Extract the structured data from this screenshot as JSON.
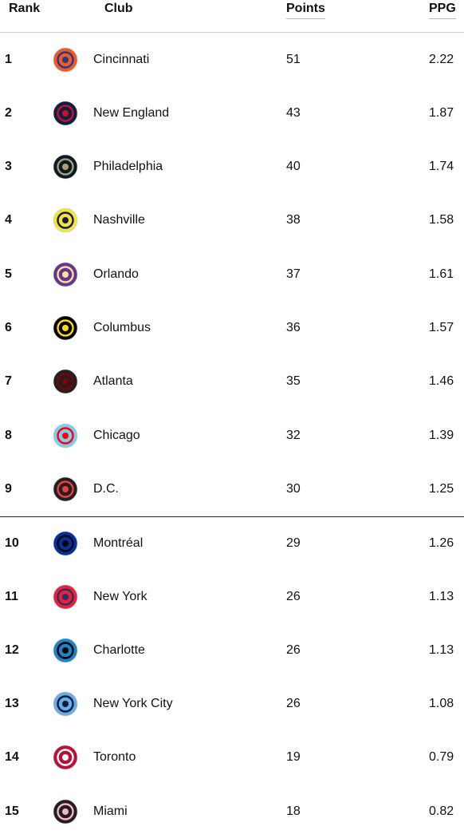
{
  "headers": {
    "rank": "Rank",
    "club": "Club",
    "points": "Points",
    "ppg": "PPG"
  },
  "rows": [
    {
      "rank": "1",
      "club": "Cincinnati",
      "points": "51",
      "ppg": "2.22",
      "logo": "cincinnati-logo-icon",
      "colors": [
        "#f05a28",
        "#263b80"
      ]
    },
    {
      "rank": "2",
      "club": "New England",
      "points": "43",
      "ppg": "1.87",
      "logo": "new-england-logo-icon",
      "colors": [
        "#0a2240",
        "#ce0e2d"
      ]
    },
    {
      "rank": "3",
      "club": "Philadelphia",
      "points": "40",
      "ppg": "1.74",
      "logo": "philadelphia-logo-icon",
      "colors": [
        "#071b2c",
        "#b19b69"
      ]
    },
    {
      "rank": "4",
      "club": "Nashville",
      "points": "38",
      "ppg": "1.58",
      "logo": "nashville-logo-icon",
      "colors": [
        "#ece83a",
        "#1f1646"
      ]
    },
    {
      "rank": "5",
      "club": "Orlando",
      "points": "37",
      "ppg": "1.61",
      "logo": "orlando-logo-icon",
      "colors": [
        "#633492",
        "#fde192"
      ]
    },
    {
      "rank": "6",
      "club": "Columbus",
      "points": "36",
      "ppg": "1.57",
      "logo": "columbus-logo-icon",
      "colors": [
        "#000000",
        "#fedd00"
      ]
    },
    {
      "rank": "7",
      "club": "Atlanta",
      "points": "35",
      "ppg": "1.46",
      "logo": "atlanta-logo-icon",
      "colors": [
        "#221f1f",
        "#80000a"
      ]
    },
    {
      "rank": "8",
      "club": "Chicago",
      "points": "32",
      "ppg": "1.39",
      "logo": "chicago-logo-icon",
      "colors": [
        "#7ccdef",
        "#ff0000"
      ]
    },
    {
      "rank": "9",
      "club": "D.C.",
      "points": "30",
      "ppg": "1.25",
      "logo": "dc-logo-icon",
      "colors": [
        "#231f20",
        "#ef3e42"
      ]
    },
    {
      "rank": "10",
      "club": "Montréal",
      "points": "29",
      "ppg": "1.26",
      "logo": "montreal-logo-icon",
      "colors": [
        "#0033a1",
        "#000000"
      ]
    },
    {
      "rank": "11",
      "club": "New York",
      "points": "26",
      "ppg": "1.13",
      "logo": "new-york-logo-icon",
      "colors": [
        "#ed1e36",
        "#23326a"
      ]
    },
    {
      "rank": "12",
      "club": "Charlotte",
      "points": "26",
      "ppg": "1.13",
      "logo": "charlotte-logo-icon",
      "colors": [
        "#1a85c8",
        "#000000"
      ]
    },
    {
      "rank": "13",
      "club": "New York City",
      "points": "26",
      "ppg": "1.08",
      "logo": "new-york-city-logo-icon",
      "colors": [
        "#6cace4",
        "#041e42"
      ]
    },
    {
      "rank": "14",
      "club": "Toronto",
      "points": "19",
      "ppg": "0.79",
      "logo": "toronto-logo-icon",
      "colors": [
        "#b81137",
        "#ffffff"
      ]
    },
    {
      "rank": "15",
      "club": "Miami",
      "points": "18",
      "ppg": "0.82",
      "logo": "miami-logo-icon",
      "colors": [
        "#231f20",
        "#f7b5cd"
      ]
    }
  ],
  "separator_after_rank": 9
}
